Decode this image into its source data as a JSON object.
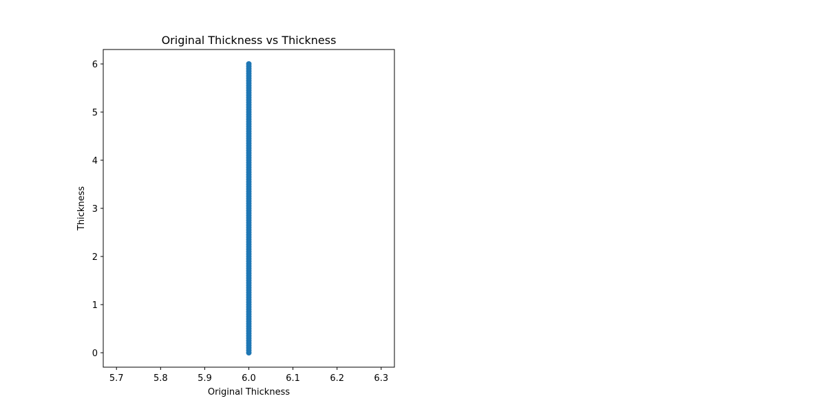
{
  "chart_data": {
    "type": "scatter",
    "title": "Original Thickness vs Thickness",
    "xlabel": "Original Thickness",
    "ylabel": "Thickness",
    "xlim": [
      5.67,
      6.33
    ],
    "ylim": [
      -0.3,
      6.3
    ],
    "xticks": [
      5.7,
      5.8,
      5.9,
      6.0,
      6.1,
      6.2,
      6.3
    ],
    "xtick_labels": [
      "5.7",
      "5.8",
      "5.9",
      "6.0",
      "6.1",
      "6.2",
      "6.3"
    ],
    "yticks": [
      0,
      1,
      2,
      3,
      4,
      5,
      6
    ],
    "ytick_labels": [
      "0",
      "1",
      "2",
      "3",
      "4",
      "5",
      "6"
    ],
    "grid": false,
    "legend": "none",
    "marker_color": "#1f77b4",
    "series": [
      {
        "x_constant": 6.0,
        "y_min": 0,
        "y_max": 6,
        "y_step": 0.05
      }
    ]
  }
}
